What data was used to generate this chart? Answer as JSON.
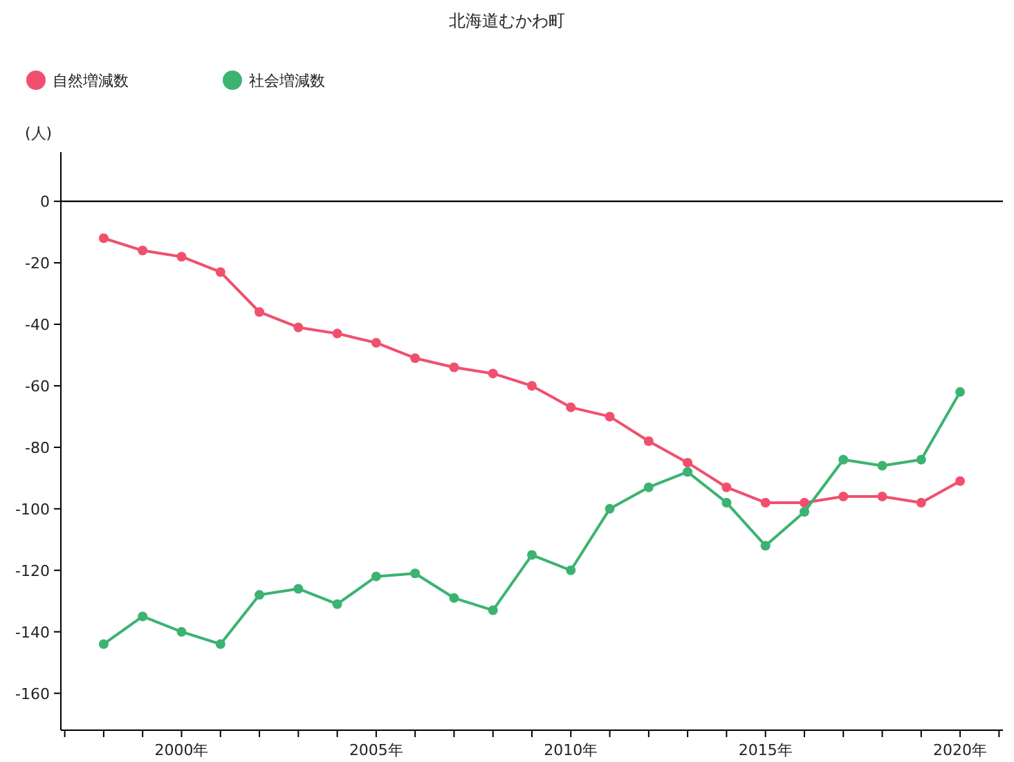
{
  "chart_data": {
    "type": "line",
    "title": "北海道むかわ町",
    "ylabel": "(人)",
    "x": [
      1998,
      1999,
      2000,
      2001,
      2002,
      2003,
      2004,
      2005,
      2006,
      2007,
      2008,
      2009,
      2010,
      2011,
      2012,
      2013,
      2014,
      2015,
      2016,
      2017,
      2018,
      2019,
      2020
    ],
    "series": [
      {
        "name": "自然増減数",
        "color": "#f0506e",
        "values": [
          -12,
          -16,
          -18,
          -23,
          -36,
          -41,
          -43,
          -46,
          -51,
          -54,
          -56,
          -60,
          -67,
          -70,
          -78,
          -85,
          -93,
          -98,
          -98,
          -96,
          -96,
          -98,
          -91
        ]
      },
      {
        "name": "社会増減数",
        "color": "#3cb371",
        "values": [
          -144,
          -135,
          -140,
          -144,
          -128,
          -126,
          -131,
          -122,
          -121,
          -129,
          -133,
          -115,
          -120,
          -100,
          -93,
          -88,
          -98,
          -112,
          -101,
          -84,
          -86,
          -84,
          -62
        ]
      }
    ],
    "xlim": [
      1996.9,
      2021.1
    ],
    "xticks": [
      {
        "value": 1997,
        "label": null
      },
      {
        "value": 1998,
        "label": null
      },
      {
        "value": 1999,
        "label": null
      },
      {
        "value": 2000,
        "label": "2000年"
      },
      {
        "value": 2001,
        "label": null
      },
      {
        "value": 2002,
        "label": null
      },
      {
        "value": 2003,
        "label": null
      },
      {
        "value": 2004,
        "label": null
      },
      {
        "value": 2005,
        "label": "2005年"
      },
      {
        "value": 2006,
        "label": null
      },
      {
        "value": 2007,
        "label": null
      },
      {
        "value": 2008,
        "label": null
      },
      {
        "value": 2009,
        "label": null
      },
      {
        "value": 2010,
        "label": "2010年"
      },
      {
        "value": 2011,
        "label": null
      },
      {
        "value": 2012,
        "label": null
      },
      {
        "value": 2013,
        "label": null
      },
      {
        "value": 2014,
        "label": null
      },
      {
        "value": 2015,
        "label": "2015年"
      },
      {
        "value": 2016,
        "label": null
      },
      {
        "value": 2017,
        "label": null
      },
      {
        "value": 2018,
        "label": null
      },
      {
        "value": 2019,
        "label": null
      },
      {
        "value": 2020,
        "label": "2020年"
      },
      {
        "value": 2021,
        "label": null
      }
    ],
    "ylim": [
      -172,
      16
    ],
    "yticks": [
      0,
      -20,
      -40,
      -60,
      -80,
      -100,
      -120,
      -140,
      -160
    ],
    "ref_lines": [
      {
        "axis": "y",
        "value": 0,
        "color": "#000000"
      }
    ],
    "legend": "top left",
    "marker": "circle",
    "line_style": "solid",
    "grid": false
  }
}
